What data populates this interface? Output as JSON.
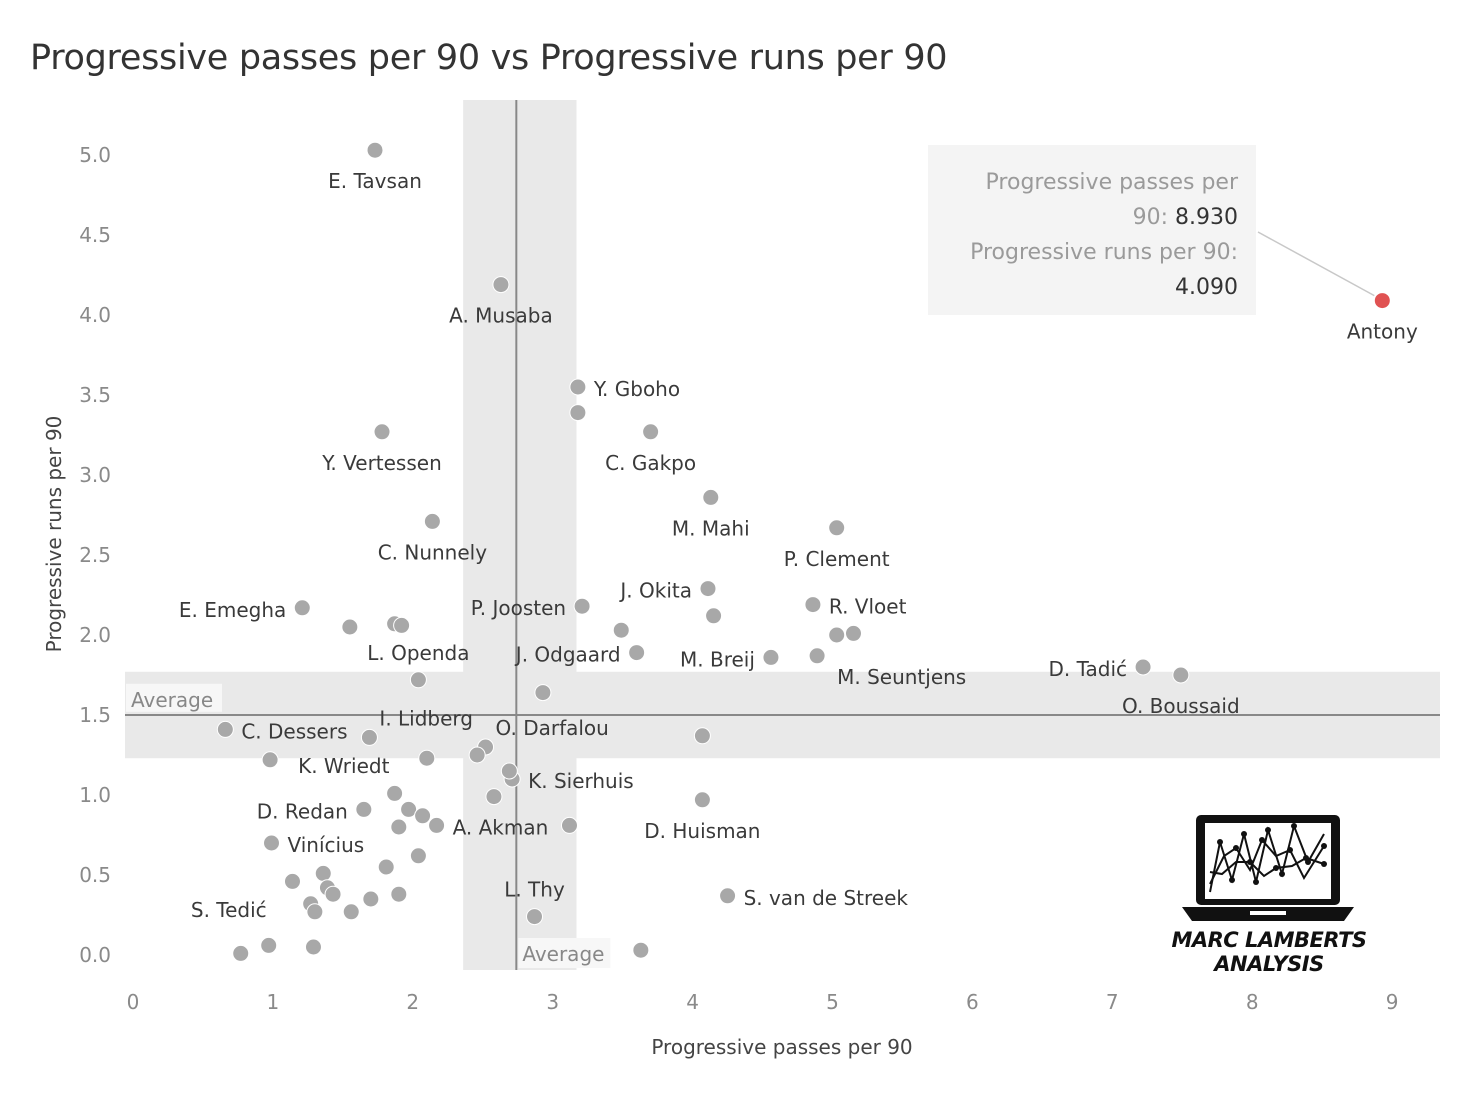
{
  "chart_data": {
    "type": "scatter",
    "title": "Progressive passes per 90 vs Progressive runs per 90",
    "xlabel": "Progressive passes per 90",
    "ylabel": "Progressive runs per 90",
    "xlim": [
      0,
      9.4
    ],
    "ylim": [
      -0.1,
      5.35
    ],
    "x_ticks": [
      "0",
      "1",
      "2",
      "3",
      "4",
      "5",
      "6",
      "7",
      "8",
      "9"
    ],
    "y_ticks": [
      "0.0",
      "0.5",
      "1.0",
      "1.5",
      "2.0",
      "2.5",
      "3.0",
      "3.5",
      "4.0",
      "4.5",
      "5.0"
    ],
    "x_tick_values": [
      0,
      1,
      2,
      3,
      4,
      5,
      6,
      7,
      8,
      9
    ],
    "y_tick_values": [
      0,
      0.5,
      1,
      1.5,
      2,
      2.5,
      3,
      3.5,
      4,
      4.5,
      5
    ],
    "x_average": 2.74,
    "x_average_band": [
      2.36,
      3.17
    ],
    "y_average": 1.5,
    "y_average_band": [
      1.23,
      1.77
    ],
    "average_label": "Average",
    "point_color": "#a8a8a8",
    "highlight_color": "#e05252",
    "points": [
      {
        "name": "E. Tavsan",
        "x": 1.73,
        "y": 5.03,
        "label_pos": "below"
      },
      {
        "name": "A. Musaba",
        "x": 2.63,
        "y": 4.19,
        "label_pos": "below"
      },
      {
        "name": "Y. Gboho",
        "x": 3.18,
        "y": 3.55,
        "label_pos": "right"
      },
      {
        "name": "",
        "x": 3.18,
        "y": 3.39
      },
      {
        "name": "Y. Vertessen",
        "x": 1.78,
        "y": 3.27,
        "label_pos": "below"
      },
      {
        "name": "C. Gakpo",
        "x": 3.7,
        "y": 3.27,
        "label_pos": "below"
      },
      {
        "name": "M. Mahi",
        "x": 4.13,
        "y": 2.86,
        "label_pos": "below"
      },
      {
        "name": "C. Nunnely",
        "x": 2.14,
        "y": 2.71,
        "label_pos": "below"
      },
      {
        "name": "P. Clement",
        "x": 5.03,
        "y": 2.67,
        "label_pos": "below"
      },
      {
        "name": "J. Okita",
        "x": 4.11,
        "y": 2.29,
        "label_pos": "left"
      },
      {
        "name": "E. Emegha",
        "x": 1.21,
        "y": 2.17,
        "label_pos": "left"
      },
      {
        "name": "P. Joosten",
        "x": 3.21,
        "y": 2.18,
        "label_pos": "left"
      },
      {
        "name": "R. Vloet",
        "x": 4.86,
        "y": 2.19,
        "label_pos": "right"
      },
      {
        "name": "",
        "x": 4.15,
        "y": 2.12
      },
      {
        "name": "",
        "x": 1.55,
        "y": 2.05
      },
      {
        "name": "",
        "x": 1.87,
        "y": 2.07
      },
      {
        "name": "",
        "x": 1.92,
        "y": 2.06
      },
      {
        "name": "",
        "x": 3.49,
        "y": 2.03
      },
      {
        "name": "",
        "x": 5.03,
        "y": 2.0
      },
      {
        "name": "",
        "x": 5.15,
        "y": 2.01
      },
      {
        "name": "L. Openda",
        "x": 2.04,
        "y": 1.72,
        "label_pos": "above"
      },
      {
        "name": "J. Odgaard",
        "x": 3.6,
        "y": 1.89,
        "label_pos": "left"
      },
      {
        "name": "M. Breij",
        "x": 4.56,
        "y": 1.86,
        "label_pos": "left"
      },
      {
        "name": "M. Seuntjens",
        "x": 4.89,
        "y": 1.87,
        "label_pos": "belowright"
      },
      {
        "name": "D. Tadić",
        "x": 7.22,
        "y": 1.8,
        "label_pos": "left"
      },
      {
        "name": "O. Boussaid",
        "x": 7.49,
        "y": 1.75,
        "label_pos": "below"
      },
      {
        "name": "",
        "x": 2.93,
        "y": 1.64
      },
      {
        "name": "C. Dessers",
        "x": 0.66,
        "y": 1.41,
        "label_pos": "right"
      },
      {
        "name": "I. Lidberg",
        "x": 1.69,
        "y": 1.36,
        "label_pos": "aboveright"
      },
      {
        "name": "O. Darfalou",
        "x": 2.52,
        "y": 1.3,
        "label_pos": "aboveright"
      },
      {
        "name": "",
        "x": 2.46,
        "y": 1.25
      },
      {
        "name": "",
        "x": 4.07,
        "y": 1.37
      },
      {
        "name": "K. Wriedt",
        "x": 0.98,
        "y": 1.22,
        "label_pos": "rightbelow"
      },
      {
        "name": "",
        "x": 2.1,
        "y": 1.23
      },
      {
        "name": "K. Sierhuis",
        "x": 2.71,
        "y": 1.1,
        "label_pos": "right"
      },
      {
        "name": "",
        "x": 2.69,
        "y": 1.15
      },
      {
        "name": "",
        "x": 1.87,
        "y": 1.01
      },
      {
        "name": "",
        "x": 2.58,
        "y": 0.99
      },
      {
        "name": "D. Redan",
        "x": 1.65,
        "y": 0.91,
        "label_pos": "left"
      },
      {
        "name": "",
        "x": 1.97,
        "y": 0.91
      },
      {
        "name": "",
        "x": 2.07,
        "y": 0.87
      },
      {
        "name": "",
        "x": 1.9,
        "y": 0.8
      },
      {
        "name": "A. Akman",
        "x": 2.17,
        "y": 0.81,
        "label_pos": "right"
      },
      {
        "name": "",
        "x": 3.12,
        "y": 0.81
      },
      {
        "name": "D. Huisman",
        "x": 4.07,
        "y": 0.97,
        "label_pos": "below"
      },
      {
        "name": "Vinícius",
        "x": 0.99,
        "y": 0.7,
        "label_pos": "right"
      },
      {
        "name": "",
        "x": 2.04,
        "y": 0.62
      },
      {
        "name": "",
        "x": 1.81,
        "y": 0.55
      },
      {
        "name": "",
        "x": 1.36,
        "y": 0.51
      },
      {
        "name": "",
        "x": 1.14,
        "y": 0.46
      },
      {
        "name": "",
        "x": 1.39,
        "y": 0.42
      },
      {
        "name": "",
        "x": 1.43,
        "y": 0.38
      },
      {
        "name": "",
        "x": 1.9,
        "y": 0.38
      },
      {
        "name": "",
        "x": 1.7,
        "y": 0.35
      },
      {
        "name": "S. Tedić",
        "x": 1.27,
        "y": 0.32,
        "label_pos": "leftbelow"
      },
      {
        "name": "",
        "x": 1.3,
        "y": 0.27
      },
      {
        "name": "",
        "x": 1.56,
        "y": 0.27
      },
      {
        "name": "S. van de Streek",
        "x": 4.25,
        "y": 0.37,
        "label_pos": "right"
      },
      {
        "name": "L. Thy",
        "x": 2.87,
        "y": 0.24,
        "label_pos": "above"
      },
      {
        "name": "",
        "x": 0.97,
        "y": 0.06
      },
      {
        "name": "",
        "x": 1.29,
        "y": 0.05
      },
      {
        "name": "",
        "x": 0.77,
        "y": 0.01
      },
      {
        "name": "",
        "x": 3.63,
        "y": 0.03
      },
      {
        "name": "Antony",
        "x": 8.93,
        "y": 4.09,
        "label_pos": "below",
        "highlight": true
      }
    ]
  },
  "tooltip": {
    "line1": "Progressive passes per",
    "line2_prefix": "90: ",
    "line2_value": "8.930",
    "line3": "Progressive runs per 90:",
    "line4_value": "4.090"
  },
  "brand": {
    "name": "MARC LAMBERTS ANALYSIS"
  }
}
